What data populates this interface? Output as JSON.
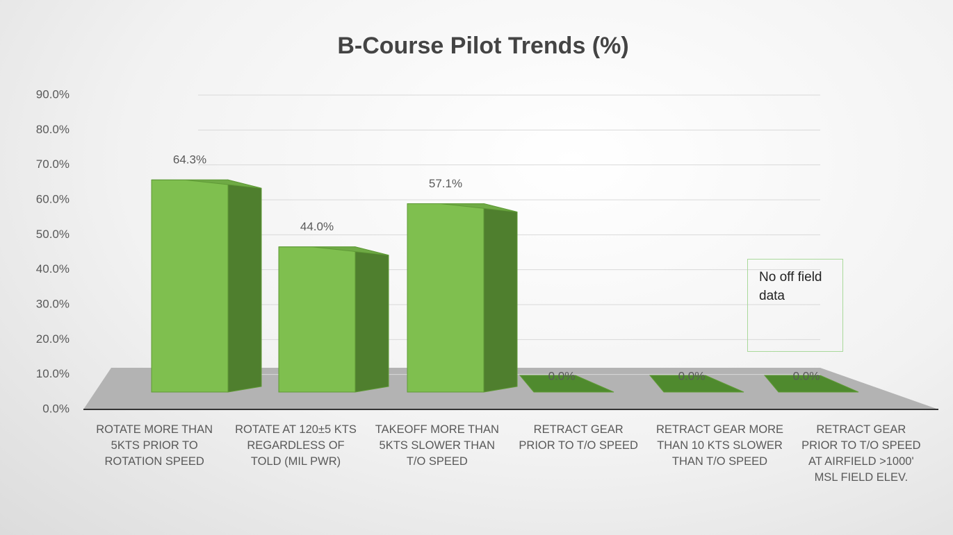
{
  "chart_data": {
    "type": "bar3d",
    "title": "B-Course Pilot Trends (%)",
    "categories": [
      "ROTATE MORE THAN 5KTS PRIOR TO ROTATION SPEED",
      "ROTATE AT 120±5 KTS REGARDLESS OF TOLD (MIL PWR)",
      "TAKEOFF MORE THAN 5KTS SLOWER THAN T/O SPEED",
      "RETRACT GEAR PRIOR TO T/O SPEED",
      "RETRACT GEAR MORE THAN 10 KTS SLOWER THAN T/O SPEED",
      "RETRACT GEAR PRIOR TO T/O SPEED AT AIRFIELD >1000' MSL FIELD ELEV."
    ],
    "values": [
      64.3,
      44.0,
      57.1,
      0,
      0,
      0
    ],
    "value_labels": [
      "64.3%",
      "44.0%",
      "57.1%",
      "0.0%",
      "0.0%",
      "0.0%"
    ],
    "color": "#7fbf4f",
    "ylim": [
      0,
      90
    ],
    "yticks": [
      {
        "value": 0,
        "label": "0.0%"
      },
      {
        "value": 10,
        "label": "10.0%"
      },
      {
        "value": 20,
        "label": "20.0%"
      },
      {
        "value": 30,
        "label": "30.0%"
      },
      {
        "value": 40,
        "label": "40.0%"
      },
      {
        "value": 50,
        "label": "50.0%"
      },
      {
        "value": 60,
        "label": "60.0%"
      },
      {
        "value": 70,
        "label": "70.0%"
      },
      {
        "value": 80,
        "label": "80.0%"
      },
      {
        "value": 90,
        "label": "90.0%"
      }
    ],
    "grid": true,
    "annotation": "No off field data"
  }
}
